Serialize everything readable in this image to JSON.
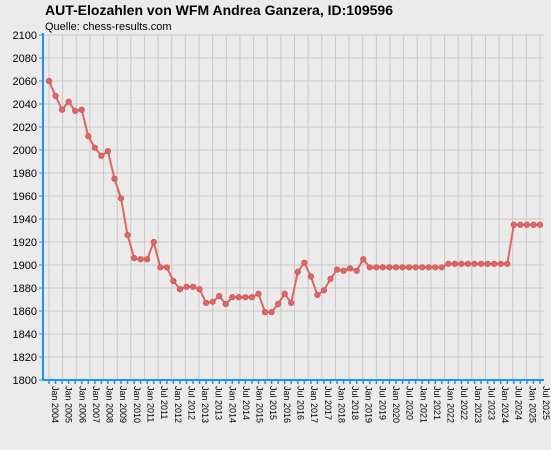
{
  "chart_data": {
    "type": "line",
    "title": "AUT-Elozahlen von WFM Andrea Ganzera, ID:109596",
    "subtitle": "Quelle: chess-results.com",
    "xlabel": "",
    "ylabel": "",
    "ylim": [
      1800,
      2100
    ],
    "yticks": [
      1800,
      1820,
      1840,
      1860,
      1880,
      1900,
      1920,
      1940,
      1960,
      1980,
      2000,
      2020,
      2040,
      2060,
      2080,
      2100
    ],
    "grid": true,
    "legend": "none",
    "colors": {
      "line": "#e06666",
      "marker": "#e06666",
      "axis": "#1e90ff",
      "grid": "#c8c8c8",
      "plot_bg": "#ebebeb"
    },
    "xtick_labels": [
      "Jan 2004",
      "Jan 2005",
      "Jan 2006",
      "Jan 2007",
      "Jan 2008",
      "Jan 2009",
      "Jan 2010",
      "Jan 2011",
      "Jul 2011",
      "Jan 2012",
      "Jul 2012",
      "Jan 2013",
      "Jul 2013",
      "Jan 2014",
      "Jul 2014",
      "Jan 2015",
      "Jul 2015",
      "Jan 2016",
      "Jul 2016",
      "Jan 2017",
      "Jul 2017",
      "Jan 2018",
      "Jul 2018",
      "Jan 2019",
      "Jul 2019",
      "Jan 2020",
      "Jul 2020",
      "Jan 2021",
      "Jul 2021",
      "Jan 2022",
      "Jul 2022",
      "Jan 2023",
      "Jul 2023",
      "Jan 2024",
      "Jul 2024",
      "Jan 2025",
      "Jul 2025"
    ],
    "series": [
      {
        "values": [
          2060,
          2047,
          2035,
          2042,
          2034,
          2035,
          2012,
          2002,
          1995,
          1999,
          1975,
          1958,
          1926,
          1906,
          1905,
          1905,
          1920,
          1898,
          1898,
          1886,
          1879,
          1881,
          1881,
          1879,
          1867,
          1868,
          1873,
          1866,
          1872,
          1872,
          1872,
          1872,
          1875,
          1859,
          1859,
          1866,
          1875,
          1867,
          1894,
          1902,
          1890,
          1874,
          1878,
          1888,
          1896,
          1895,
          1897,
          1895,
          1905,
          1898,
          1898,
          1898,
          1898,
          1898,
          1898,
          1898,
          1898,
          1898,
          1898,
          1898,
          1898,
          1901,
          1901,
          1901,
          1901,
          1901,
          1901,
          1901,
          1901,
          1901,
          1901,
          1935,
          1935,
          1935,
          1935,
          1935
        ]
      }
    ]
  }
}
